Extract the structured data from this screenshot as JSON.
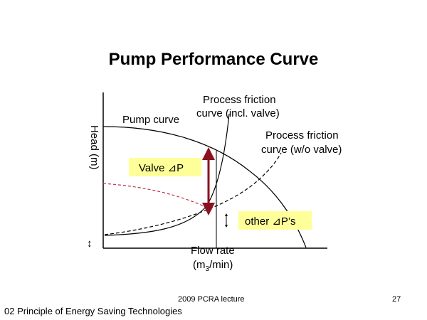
{
  "slide": {
    "title": "Pump Performance Curve",
    "footer_center": "2009 PCRA lecture",
    "page_number": "27",
    "footer_left": "02 Principle of Energy Saving Technologies"
  },
  "diagram": {
    "y_axis_label": "Head (m)",
    "x_axis_label_line1": "Flow rate",
    "x_axis_label_line2_a": "(m",
    "x_axis_label_line2_sub": "3",
    "x_axis_label_line2_b": "/min)",
    "pump_curve_label": "Pump curve",
    "friction_valve_label_line1": "Process friction",
    "friction_valve_label_line2": "curve (incl. valve)",
    "friction_novalve_label_line1": "Process friction",
    "friction_novalve_label_line2": "curve (w/o valve)",
    "valve_dp_label": "Valve ⊿P",
    "other_dp_label": "other ⊿P’s",
    "small_arrow_glyph": "↕",
    "colors": {
      "curve": "#000000",
      "valve_arrow": "#8b1020",
      "dashed_red": "#c0304a",
      "label_box_fill": "#ffff99"
    }
  }
}
